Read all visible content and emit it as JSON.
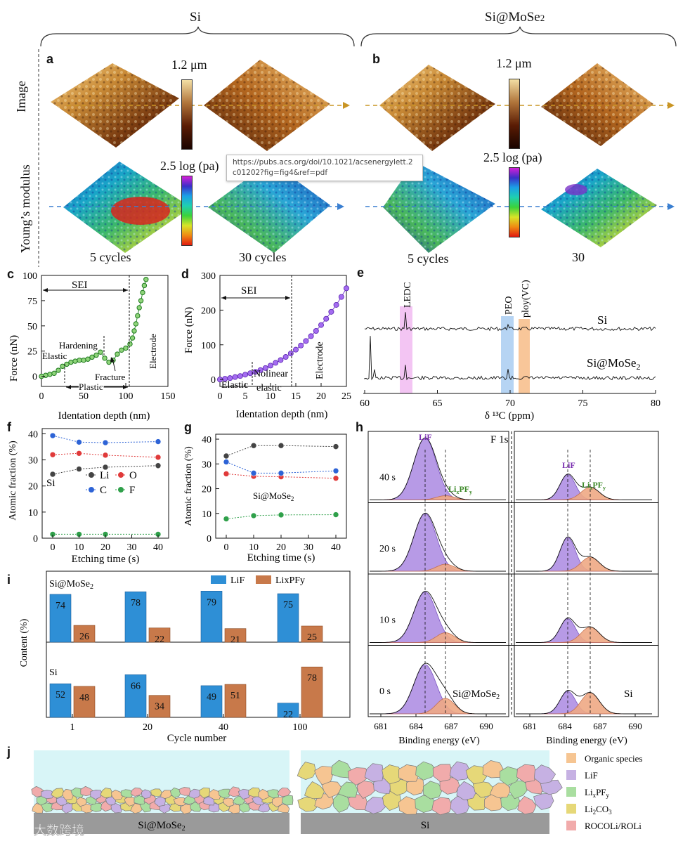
{
  "header": {
    "si_label": "Si",
    "simose2_label": "Si@MoSe",
    "simose2_sub": "2"
  },
  "panel_a": {
    "letter": "a",
    "row_image": "Image",
    "row_modulus": "Young’s  modulus",
    "scale_top": "1.2 μm",
    "scale_bottom": "2.5 log (pa)",
    "cap_left": "5 cycles",
    "cap_right": "30 cycles"
  },
  "panel_b": {
    "letter": "b",
    "scale_top": "1.2 μm",
    "scale_bottom": "2.5 log (pa)",
    "cap_left": "5 cycles",
    "cap_right": "30"
  },
  "tooltip": {
    "text": "https://pubs.acs.org/doi/10.1021/acsenergylett.2c01202?fig=fig4&ref=pdf"
  },
  "panel_c": {
    "letter": "c",
    "ylabel": "Force (nN)",
    "xlabel": "Identation depth (nm)",
    "xticks": [
      "0",
      "50",
      "100",
      "150"
    ],
    "yticks": [
      "0",
      "25",
      "50",
      "75",
      "100"
    ],
    "sei": "SEI",
    "elastic": "Elastic",
    "hardening": "Hardening",
    "fracture": "Fracture",
    "plastic": "Plastic",
    "electrode": "Electrode"
  },
  "panel_d": {
    "letter": "d",
    "ylabel": "Force (nN)",
    "xlabel": "Identation depth (nm)",
    "xticks": [
      "0",
      "5",
      "10",
      "15",
      "20",
      "25"
    ],
    "yticks": [
      "0",
      "100",
      "200",
      "300"
    ],
    "sei": "SEI",
    "elastic": "Elastic",
    "nolinear1": "Nolinear",
    "nolinear2": "elastic",
    "electrode": "Electrode"
  },
  "panel_e": {
    "letter": "e",
    "xlabel": "δ ¹³C (ppm)",
    "xticks": [
      "60",
      "65",
      "70",
      "75",
      "80"
    ],
    "ledc": "LEDC",
    "peo": "PEO",
    "ploy": "ploy(VC)",
    "si": "Si",
    "simose2": "Si@MoSe",
    "simose2_sub": "2"
  },
  "panel_f": {
    "letter": "f",
    "ylabel": "Atomic fraction (%)",
    "xlabel": "Etching time (s)",
    "xticks": [
      "0",
      "10",
      "20",
      "30",
      "40"
    ],
    "yticks": [
      "0",
      "10",
      "20",
      "30",
      "40"
    ],
    "sample": "Si",
    "legend": [
      "Li",
      "O",
      "C",
      "F"
    ]
  },
  "panel_g": {
    "letter": "g",
    "ylabel": "Atomic fraction (%)",
    "xlabel": "Etching time (s)",
    "xticks": [
      "0",
      "10",
      "20",
      "30",
      "40"
    ],
    "yticks": [
      "0",
      "10",
      "20",
      "30",
      "40"
    ],
    "sample": "Si@MoSe",
    "sample_sub": "2"
  },
  "panel_h": {
    "letter": "h",
    "title": "F 1s",
    "lif": "LiF",
    "lixpfy": "Li",
    "lixpfy_x": "x",
    "lixpfy_p": "PF",
    "lixpfy_y": "y",
    "times": [
      "40 s",
      "20 s",
      "10 s",
      "0 s"
    ],
    "sample_left": "Si@MoSe",
    "sample_left_sub": "2",
    "sample_right": "Si",
    "xlabel": "Binding energy (eV)",
    "xticks": [
      "681",
      "684",
      "687",
      "690"
    ]
  },
  "panel_i": {
    "letter": "i",
    "ylabel": "Content (%)",
    "xlabel": "Cycle number",
    "legend_lif": "LiF",
    "legend_lixpfy": "LixPFy",
    "top_sample": "Si@MoSe",
    "top_sample_sub": "2",
    "bottom_sample": "Si"
  },
  "panel_j": {
    "letter": "j",
    "left_label": "Si@MoSe",
    "left_sub": "2",
    "right_label": "Si",
    "legend": [
      "Organic species",
      "LiF",
      "Li",
      "Li",
      "ROCOLi/ROLi"
    ],
    "legend_lixpfy_x": "x",
    "legend_lixpfy_rest": "PF",
    "legend_lixpfy_y": "y",
    "legend_li2co3_sub": "2",
    "legend_li2co3_rest": "CO",
    "legend_li2co3_sub2": "3",
    "watermark": "大数跨境"
  },
  "colors": {
    "lif": "#2e8fd6",
    "lixpfy": "#c8794a",
    "lif_peak": "#b79ae6",
    "lixpfy_peak": "#efa985",
    "organic": "#f6c592",
    "lif_j": "#c6b1e3",
    "lixpfy_j": "#a9dea0",
    "li2co3": "#e6d878",
    "rocoli": "#f1abab",
    "electrolyte": "#d8f5f7",
    "substrate": "#9a9a9a"
  },
  "chart_data": [
    {
      "type": "scatter",
      "title": "c",
      "xlabel": "Identation depth (nm)",
      "ylabel": "Force (nN)",
      "xlim": [
        0,
        150
      ],
      "ylim": [
        -10,
        100
      ],
      "x": [
        0,
        5,
        10,
        15,
        20,
        25,
        30,
        35,
        40,
        45,
        50,
        55,
        60,
        65,
        70,
        75,
        80,
        85,
        90,
        95,
        100,
        105,
        108,
        110,
        112,
        114,
        116,
        118,
        120,
        122,
        124
      ],
      "y": [
        0,
        1,
        2,
        3,
        6,
        10,
        12,
        14,
        15,
        16,
        16,
        17,
        19,
        21,
        24,
        18,
        14,
        16,
        22,
        26,
        28,
        32,
        38,
        45,
        52,
        60,
        68,
        75,
        83,
        90,
        96
      ]
    },
    {
      "type": "scatter",
      "title": "d",
      "xlabel": "Identation depth (nm)",
      "ylabel": "Force (nN)",
      "xlim": [
        0,
        25
      ],
      "ylim": [
        -20,
        300
      ],
      "x": [
        0,
        1,
        2,
        3,
        4,
        5,
        6,
        7,
        8,
        9,
        10,
        11,
        12,
        13,
        14,
        15,
        16,
        17,
        18,
        19,
        20,
        21,
        22,
        23,
        24,
        25
      ],
      "y": [
        0,
        2,
        4,
        7,
        10,
        14,
        18,
        22,
        27,
        33,
        40,
        48,
        56,
        65,
        75,
        86,
        98,
        111,
        125,
        140,
        157,
        175,
        195,
        215,
        238,
        263
      ]
    },
    {
      "type": "line",
      "title": "f (Si)",
      "xlabel": "Etching time (s)",
      "ylabel": "Atomic fraction (%)",
      "x": [
        0,
        10,
        20,
        40
      ],
      "ylim": [
        0,
        42
      ],
      "series": [
        {
          "name": "Li",
          "values": [
            24.5,
            26.5,
            27.2,
            27.8
          ]
        },
        {
          "name": "O",
          "values": [
            32,
            32.5,
            31.8,
            31
          ]
        },
        {
          "name": "C",
          "values": [
            39.3,
            36.8,
            36.6,
            37
          ]
        },
        {
          "name": "F",
          "values": [
            1.5,
            1.5,
            1.5,
            1.5
          ]
        }
      ]
    },
    {
      "type": "line",
      "title": "g (Si@MoSe2)",
      "xlabel": "Etching time (s)",
      "ylabel": "Atomic fraction (%)",
      "x": [
        0,
        10,
        20,
        40
      ],
      "ylim": [
        0,
        42
      ],
      "series": [
        {
          "name": "Li",
          "values": [
            33.2,
            37.4,
            37.4,
            37
          ]
        },
        {
          "name": "O",
          "values": [
            26,
            25,
            24.8,
            24.2
          ]
        },
        {
          "name": "C",
          "values": [
            30.8,
            26.3,
            26.3,
            27.2
          ]
        },
        {
          "name": "F",
          "values": [
            7.8,
            9.1,
            9.4,
            9.5
          ]
        }
      ]
    },
    {
      "type": "bar",
      "title": "i (Si@MoSe2)",
      "categories": [
        "1",
        "20",
        "40",
        "100"
      ],
      "series": [
        {
          "name": "LiF",
          "values": [
            74,
            78,
            79,
            75
          ]
        },
        {
          "name": "LixPFy",
          "values": [
            26,
            22,
            21,
            25
          ]
        }
      ]
    },
    {
      "type": "bar",
      "title": "i (Si)",
      "categories": [
        "1",
        "20",
        "40",
        "100"
      ],
      "series": [
        {
          "name": "LiF",
          "values": [
            52,
            66,
            49,
            22
          ]
        },
        {
          "name": "LixPFy",
          "values": [
            48,
            34,
            51,
            78
          ]
        }
      ]
    }
  ]
}
